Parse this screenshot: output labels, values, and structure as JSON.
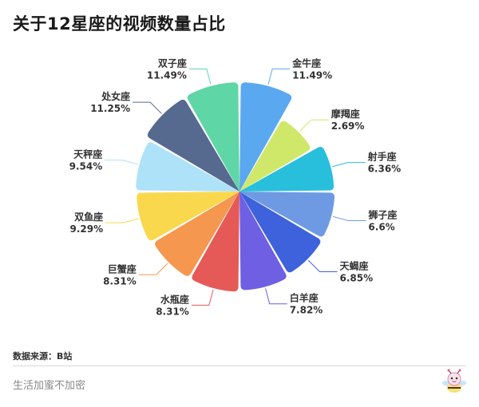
{
  "title": "关于12星座的视频数量占比",
  "source": "数据来源：B站",
  "footer": "生活加蜜不加密",
  "chart_data": {
    "type": "pie",
    "variant": "rose",
    "title": "关于12星座的视频数量占比",
    "slices": [
      {
        "name": "金牛座",
        "value": 11.49,
        "label": "11.49%",
        "color": "#5aa8f0"
      },
      {
        "name": "摩羯座",
        "value": 2.69,
        "label": "2.69%",
        "color": "#cfe86a"
      },
      {
        "name": "射手座",
        "value": 6.36,
        "label": "6.36%",
        "color": "#27bfdc"
      },
      {
        "name": "狮子座",
        "value": 6.6,
        "label": "6.6%",
        "color": "#6e9ae4"
      },
      {
        "name": "天蝎座",
        "value": 6.85,
        "label": "6.85%",
        "color": "#3e62dc"
      },
      {
        "name": "白羊座",
        "value": 7.82,
        "label": "7.82%",
        "color": "#6e5fe3"
      },
      {
        "name": "水瓶座",
        "value": 8.31,
        "label": "8.31%",
        "color": "#e55a57"
      },
      {
        "name": "巨蟹座",
        "value": 8.31,
        "label": "8.31%",
        "color": "#f5974e"
      },
      {
        "name": "双鱼座",
        "value": 9.29,
        "label": "9.29%",
        "color": "#fad84e"
      },
      {
        "name": "天秤座",
        "value": 9.54,
        "label": "9.54%",
        "color": "#aee2f8"
      },
      {
        "name": "处女座",
        "value": 11.25,
        "label": "11.25%",
        "color": "#56698f"
      },
      {
        "name": "双子座",
        "value": 11.49,
        "label": "11.49%",
        "color": "#5fd6a5"
      }
    ]
  }
}
